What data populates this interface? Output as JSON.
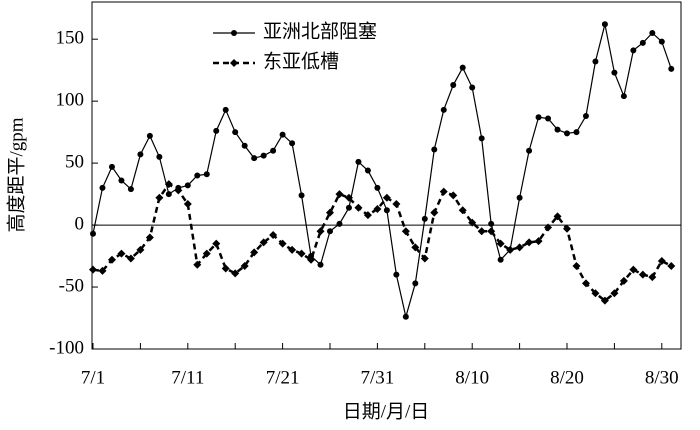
{
  "chart_data": {
    "type": "line",
    "xlabel": "日期/月/日",
    "ylabel": "高度距平/gpm",
    "categories": [
      "7/1",
      null,
      null,
      null,
      null,
      null,
      null,
      null,
      null,
      null,
      "7/11",
      null,
      null,
      null,
      null,
      null,
      null,
      null,
      null,
      null,
      "7/21",
      null,
      null,
      null,
      null,
      null,
      null,
      null,
      null,
      null,
      "7/31",
      null,
      null,
      null,
      null,
      null,
      null,
      null,
      null,
      null,
      "8/10",
      null,
      null,
      null,
      null,
      null,
      null,
      null,
      null,
      null,
      "8/20",
      null,
      null,
      null,
      null,
      null,
      null,
      null,
      null,
      null,
      "8/30",
      null
    ],
    "series": [
      {
        "name": "亚洲北部阻塞",
        "color": "#000000",
        "linestyle": "solid",
        "marker": "circle",
        "values": [
          -7,
          30,
          47,
          36,
          29,
          57,
          72,
          55,
          25,
          30,
          32,
          40,
          41,
          76,
          93,
          75,
          64,
          54,
          56,
          60,
          73,
          66,
          24,
          -25,
          -32,
          -5,
          1,
          14,
          51,
          44,
          30,
          12,
          -40,
          -74,
          -47,
          5,
          61,
          93,
          113,
          127,
          111,
          70,
          1,
          -28,
          -20,
          22,
          60,
          87,
          86,
          77,
          74,
          75,
          88,
          132,
          162,
          123,
          104,
          141,
          147,
          155,
          148,
          126
        ]
      },
      {
        "name": "东亚低槽",
        "color": "#000000",
        "linestyle": "dashed",
        "marker": "diamond",
        "values": [
          -36,
          -37,
          -28,
          -23,
          -27,
          -20,
          -10,
          22,
          33,
          28,
          17,
          -32,
          -23,
          -15,
          -35,
          -39,
          -33,
          -22,
          -14,
          -8,
          -15,
          -20,
          -23,
          -28,
          -5,
          10,
          25,
          22,
          14,
          8,
          13,
          22,
          17,
          -5,
          -18,
          -27,
          10,
          27,
          24,
          12,
          2,
          -5,
          -5,
          -15,
          -20,
          -18,
          -14,
          -13,
          -2,
          7,
          -3,
          -33,
          -47,
          -55,
          -61,
          -55,
          -45,
          -36,
          -40,
          -42,
          -29,
          -33
        ]
      }
    ],
    "ylim": [
      -100,
      180
    ],
    "yticks": [
      -100,
      -50,
      0,
      50,
      100,
      150
    ],
    "zero_line": true,
    "legend": "upper left"
  }
}
